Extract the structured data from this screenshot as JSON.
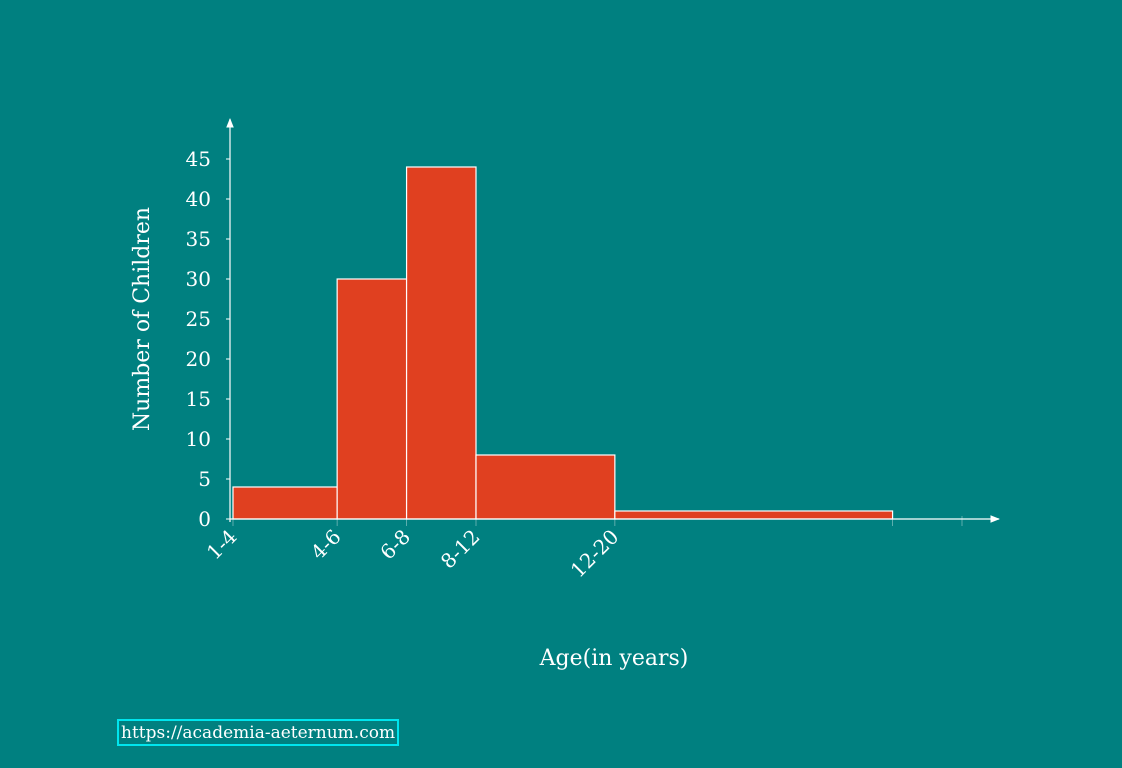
{
  "chart_data": {
    "type": "histogram",
    "xlabel": "Age(in years)",
    "ylabel": "Number of Children",
    "bin_edges": [
      1,
      4,
      6,
      8,
      12,
      20
    ],
    "x_tick_labels": [
      "1-4",
      "4-6",
      "6-8",
      "8-12",
      "12-20"
    ],
    "values": [
      4,
      30,
      44,
      8,
      1
    ],
    "yticks": [
      0,
      5,
      10,
      15,
      20,
      25,
      30,
      35,
      40,
      45
    ],
    "xlim": [
      1,
      22
    ],
    "ylim": [
      0,
      49
    ],
    "grid": false,
    "colors": {
      "background": "#008080",
      "bar_fill": "#e04020",
      "bar_stroke": "#ffffff",
      "axis": "#ffffff",
      "text": "#ffffff"
    }
  },
  "footer": {
    "source_link": "https://academia-aeternum.com"
  }
}
